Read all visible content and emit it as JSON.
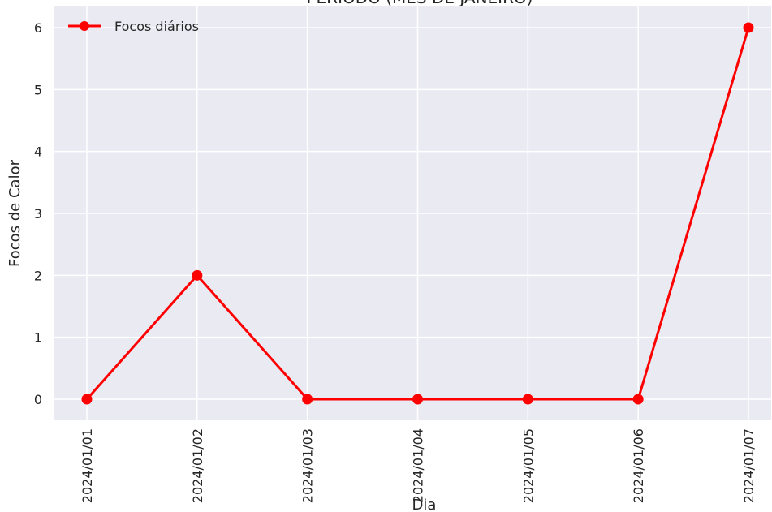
{
  "chart_data": {
    "type": "line",
    "title": "PERÍODO (MÊS DE JANEIRO)",
    "xlabel": "Dia",
    "ylabel": "Focos de Calor",
    "categories": [
      "2024/01/01",
      "2024/01/02",
      "2024/01/03",
      "2024/01/04",
      "2024/01/05",
      "2024/01/06",
      "2024/01/07"
    ],
    "series": [
      {
        "name": "Focos diários",
        "values": [
          0,
          2,
          0,
          0,
          0,
          0,
          6
        ],
        "color": "#ff0000"
      }
    ],
    "yticks": [
      0,
      1,
      2,
      3,
      4,
      5,
      6
    ],
    "ylim": [
      -0.3,
      6.3
    ],
    "grid": true,
    "legend_position": "top-left",
    "background": "#eaeaf2"
  }
}
